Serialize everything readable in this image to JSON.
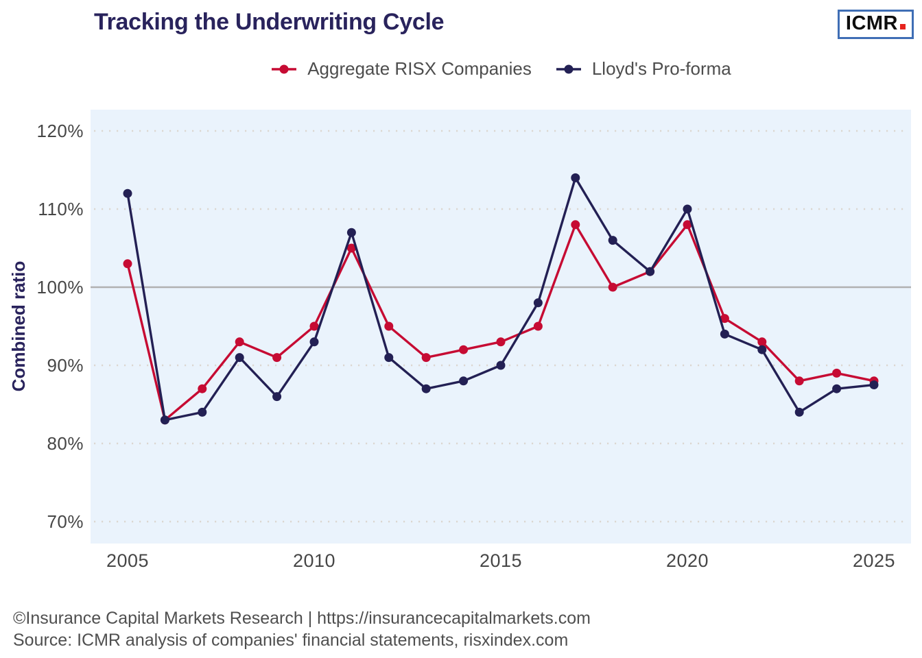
{
  "header": {
    "title": "Tracking the Underwriting Cycle",
    "logo_text": "ICMR"
  },
  "legend": [
    {
      "label": "Aggregate RISX Companies",
      "color": "#c60b33"
    },
    {
      "label": "Lloyd's Pro-forma",
      "color": "#232054"
    }
  ],
  "chart_data": {
    "type": "line",
    "title": "Tracking the Underwriting Cycle",
    "xlabel": "",
    "ylabel": "Combined ratio",
    "x": [
      2005,
      2006,
      2007,
      2008,
      2009,
      2010,
      2011,
      2012,
      2013,
      2014,
      2015,
      2016,
      2017,
      2018,
      2019,
      2020,
      2021,
      2022,
      2023,
      2024,
      2025
    ],
    "series": [
      {
        "name": "Aggregate RISX Companies",
        "color": "#c60b33",
        "values": [
          103,
          83,
          87,
          93,
          91,
          95,
          105,
          95,
          91,
          92,
          93,
          95,
          108,
          100,
          102,
          108,
          96,
          93,
          88,
          89,
          88
        ]
      },
      {
        "name": "Lloyd's Pro-forma",
        "color": "#232054",
        "values": [
          112,
          83,
          84,
          91,
          86,
          93,
          107,
          91,
          87,
          88,
          90,
          98,
          114,
          106,
          102,
          110,
          94,
          92,
          84,
          87,
          87.5
        ]
      }
    ],
    "ytick_values": [
      120,
      110,
      100,
      90,
      80,
      70
    ],
    "ytick_labels": [
      "120%",
      "110%",
      "100%",
      "90%",
      "80%",
      "70%"
    ],
    "xticks": [
      2005,
      2010,
      2015,
      2020,
      2025
    ],
    "ylim": [
      67,
      123
    ],
    "reference_line": 100,
    "grid": "dotted-horizontal",
    "legend_position": "top-center",
    "plot_bg": "#eaf3fc",
    "grid_color": "#dcd6d0",
    "reference_line_color": "#b1b1b1",
    "tick_color": "#464646",
    "axis_title_color": "#29235c"
  },
  "footer": {
    "line1": "©Insurance Capital Markets Research | https://insurancecapitalmarkets.com",
    "line2": "Source: ICMR analysis of companies' financial statements, risxindex.com"
  }
}
